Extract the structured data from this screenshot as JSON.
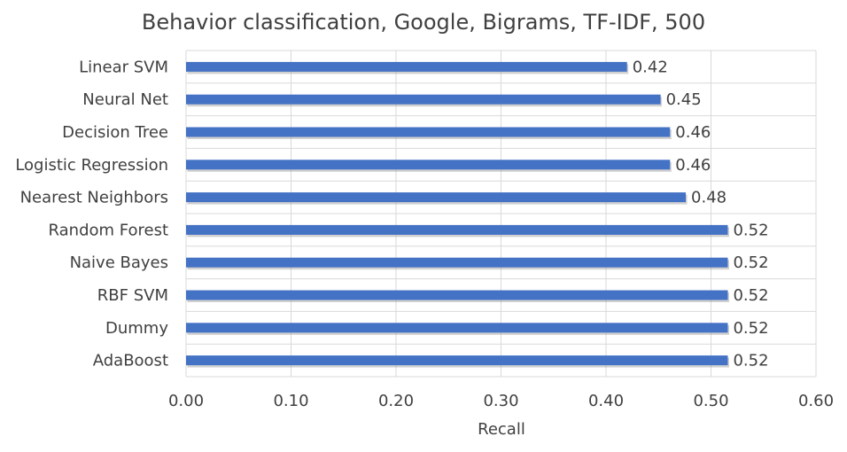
{
  "chart_data": {
    "type": "bar",
    "orientation": "horizontal",
    "title": "Behavior classification, Google, Bigrams, TF-IDF, 500",
    "xlabel": "Recall",
    "ylabel": "",
    "xlim": [
      0,
      0.6
    ],
    "x_ticks": [
      "0.00",
      "0.10",
      "0.20",
      "0.30",
      "0.40",
      "0.50",
      "0.60"
    ],
    "x_tick_values": [
      0,
      0.1,
      0.2,
      0.3,
      0.4,
      0.5,
      0.6
    ],
    "grid": true,
    "bar_color": "#4472C4",
    "categories": [
      "Linear SVM",
      "Neural Net",
      "Decision Tree",
      "Logistic Regression",
      "Nearest Neighbors",
      "Random Forest",
      "Naive Bayes",
      "RBF SVM",
      "Dummy",
      "AdaBoost"
    ],
    "values": [
      0.42,
      0.452,
      0.461,
      0.461,
      0.476,
      0.516,
      0.516,
      0.516,
      0.516,
      0.516
    ],
    "data_labels": [
      "0.42",
      "0.45",
      "0.46",
      "0.46",
      "0.48",
      "0.52",
      "0.52",
      "0.52",
      "0.52",
      "0.52"
    ]
  }
}
